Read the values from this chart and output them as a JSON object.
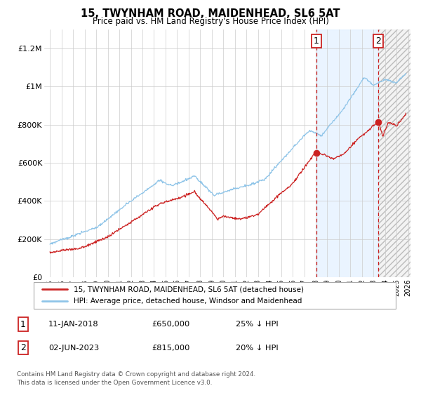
{
  "title": "15, TWYNHAM ROAD, MAIDENHEAD, SL6 5AT",
  "subtitle": "Price paid vs. HM Land Registry's House Price Index (HPI)",
  "legend_line1": "15, TWYNHAM ROAD, MAIDENHEAD, SL6 5AT (detached house)",
  "legend_line2": "HPI: Average price, detached house, Windsor and Maidenhead",
  "annotation1_date": "11-JAN-2018",
  "annotation1_price": "£650,000",
  "annotation1_hpi": "25% ↓ HPI",
  "annotation2_date": "02-JUN-2023",
  "annotation2_price": "£815,000",
  "annotation2_hpi": "20% ↓ HPI",
  "footnote": "Contains HM Land Registry data © Crown copyright and database right 2024.\nThis data is licensed under the Open Government Licence v3.0.",
  "hpi_color": "#8ec4e8",
  "price_color": "#cc2222",
  "sale1_date_x": 2018.04,
  "sale1_price": 650000,
  "sale2_date_x": 2023.42,
  "sale2_price": 815000,
  "xlim": [
    1994.5,
    2026.2
  ],
  "ylim": [
    0,
    1300000
  ],
  "shade_start": 2018.04,
  "hatch_start": 2023.42
}
